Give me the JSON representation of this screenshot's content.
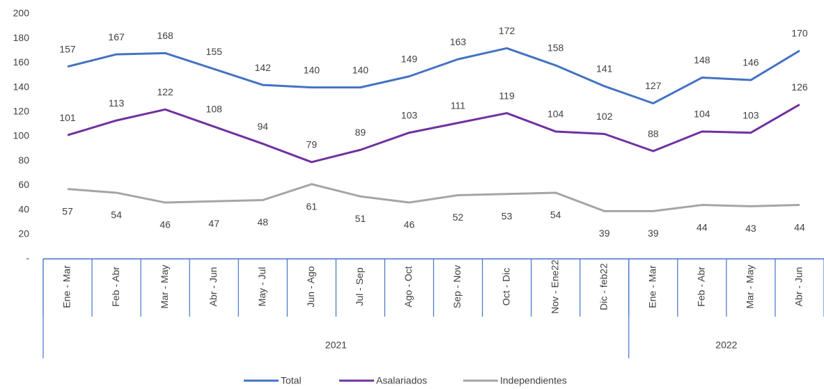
{
  "chart_data": {
    "type": "line",
    "groups": [
      {
        "label": "2021",
        "categories": [
          "Ene - Mar",
          "Feb - Abr",
          "Mar - May",
          "Abr - Jun",
          "May - Jul",
          "Jun - Ago",
          "Jul - Sep",
          "Ago - Oct",
          "Sep - Nov",
          "Oct - Dic",
          "Nov - Ene22",
          "Dic - feb22"
        ]
      },
      {
        "label": "2022",
        "categories": [
          "Ene - Mar",
          "Feb - Abr",
          "Mar - May",
          "Abr - Jun"
        ]
      }
    ],
    "series": [
      {
        "name": "Total",
        "color": "#4472c4",
        "values": [
          157,
          167,
          168,
          155,
          142,
          140,
          140,
          149,
          163,
          172,
          158,
          141,
          127,
          148,
          146,
          170
        ]
      },
      {
        "name": "Asalariados",
        "color": "#7030a0",
        "values": [
          101,
          113,
          122,
          108,
          94,
          79,
          89,
          103,
          111,
          119,
          104,
          102,
          88,
          104,
          103,
          126
        ]
      },
      {
        "name": "Independientes",
        "color": "#a5a5a5",
        "values": [
          57,
          54,
          46,
          47,
          48,
          61,
          51,
          46,
          52,
          53,
          54,
          39,
          39,
          44,
          43,
          44
        ]
      }
    ],
    "ylim": [
      0,
      200
    ],
    "yticks": [
      {
        "value": 0,
        "label": "-"
      },
      20,
      40,
      60,
      80,
      100,
      120,
      140,
      160,
      180,
      200
    ],
    "grid": false,
    "legend": "bottom"
  }
}
